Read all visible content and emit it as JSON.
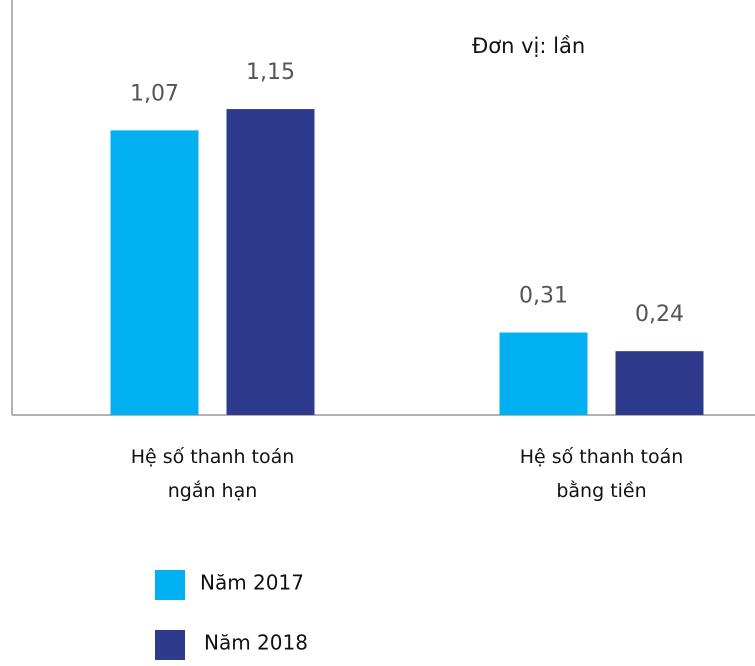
{
  "chart_data": {
    "type": "bar",
    "unit_label": "Đơn vị: lần",
    "categories": [
      "Hệ số thanh toán\nngắn hạn",
      "Hệ số thanh toán\nbằng tiền"
    ],
    "series": [
      {
        "name": "Năm 2017",
        "color": "#00b0f0",
        "values": [
          1.07,
          0.31
        ],
        "value_labels": [
          "1,07",
          "0,31"
        ]
      },
      {
        "name": "Năm 2018",
        "color": "#2e3b8c",
        "values": [
          1.15,
          0.24
        ],
        "value_labels": [
          "1,15",
          "0,24"
        ]
      }
    ],
    "ylim": [
      0,
      1.56
    ]
  }
}
